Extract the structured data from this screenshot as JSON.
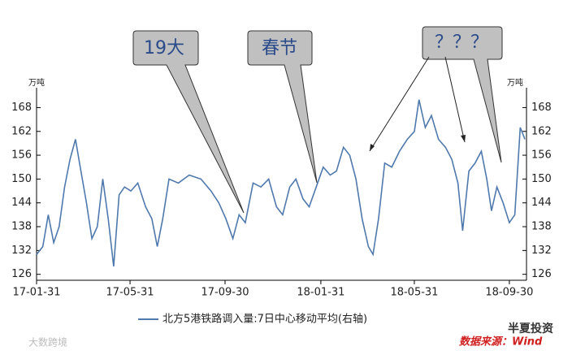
{
  "chart_data": {
    "type": "line",
    "x": [
      "2017-01-31",
      "2017-02-08",
      "2017-02-15",
      "2017-02-22",
      "2017-03-01",
      "2017-03-08",
      "2017-03-15",
      "2017-03-22",
      "2017-03-29",
      "2017-04-05",
      "2017-04-12",
      "2017-04-19",
      "2017-04-26",
      "2017-05-03",
      "2017-05-10",
      "2017-05-17",
      "2017-05-24",
      "2017-06-01",
      "2017-06-10",
      "2017-06-20",
      "2017-06-28",
      "2017-07-05",
      "2017-07-12",
      "2017-07-20",
      "2017-08-01",
      "2017-08-15",
      "2017-08-30",
      "2017-09-12",
      "2017-09-22",
      "2017-10-01",
      "2017-10-10",
      "2017-10-18",
      "2017-10-26",
      "2017-11-05",
      "2017-11-15",
      "2017-11-25",
      "2017-12-05",
      "2017-12-13",
      "2017-12-22",
      "2017-12-30",
      "2018-01-08",
      "2018-01-16",
      "2018-01-25",
      "2018-02-03",
      "2018-02-12",
      "2018-02-20",
      "2018-03-01",
      "2018-03-09",
      "2018-03-17",
      "2018-03-25",
      "2018-04-02",
      "2018-04-08",
      "2018-04-15",
      "2018-04-23",
      "2018-05-02",
      "2018-05-12",
      "2018-05-22",
      "2018-05-31",
      "2018-06-06",
      "2018-06-14",
      "2018-06-22",
      "2018-07-01",
      "2018-07-10",
      "2018-07-18",
      "2018-07-26",
      "2018-08-01",
      "2018-08-09",
      "2018-08-17",
      "2018-08-25",
      "2018-09-01",
      "2018-09-07",
      "2018-09-14",
      "2018-09-22",
      "2018-09-30",
      "2018-10-07",
      "2018-10-14",
      "2018-10-20"
    ],
    "series": [
      {
        "name": "北方5港铁路调入量:7日中心移动平均(右轴)",
        "color": "#4f79ad",
        "axis": "y2",
        "values": [
          131,
          133,
          141,
          134,
          138,
          148,
          155,
          160,
          152,
          144,
          135,
          138,
          150,
          140,
          128,
          146,
          148,
          147,
          149,
          143,
          140,
          133,
          140,
          150,
          149,
          151,
          150,
          147,
          144,
          140,
          135,
          141,
          139,
          149,
          148,
          150,
          143,
          141,
          148,
          150,
          145,
          143,
          148,
          153,
          151,
          152,
          158,
          156,
          150,
          140,
          133,
          131,
          140,
          154,
          153,
          157,
          160,
          162,
          170,
          163,
          166,
          160,
          158,
          155,
          149,
          137,
          152,
          154,
          157,
          150,
          142,
          148,
          144,
          139,
          141,
          163,
          160
        ]
      }
    ],
    "ylim": [
      124.5,
      173
    ],
    "yticks": [
      126,
      132,
      138,
      144,
      150,
      156,
      162,
      168
    ],
    "y2lim": [
      124.5,
      173
    ],
    "y2ticks": [
      126,
      132,
      138,
      144,
      150,
      156,
      162,
      168
    ],
    "y_label": "万吨",
    "y2_label": "万吨",
    "xlim": [
      "2017-01-31",
      "2018-10-22"
    ],
    "xticks": [
      {
        "value": "2017-01-31",
        "label": "17-01-31"
      },
      {
        "value": "2017-05-31",
        "label": "17-05-31"
      },
      {
        "value": "2017-09-30",
        "label": "17-09-30"
      },
      {
        "value": "2018-01-31",
        "label": "18-01-31"
      },
      {
        "value": "2018-05-31",
        "label": "18-05-31"
      },
      {
        "value": "2018-09-30",
        "label": "18-09-30"
      }
    ],
    "annotations": [
      "19大",
      "春节",
      "？？？"
    ],
    "watermarks": [
      "大数跨境",
      "半夏投资",
      "数据来源：Wind"
    ]
  }
}
